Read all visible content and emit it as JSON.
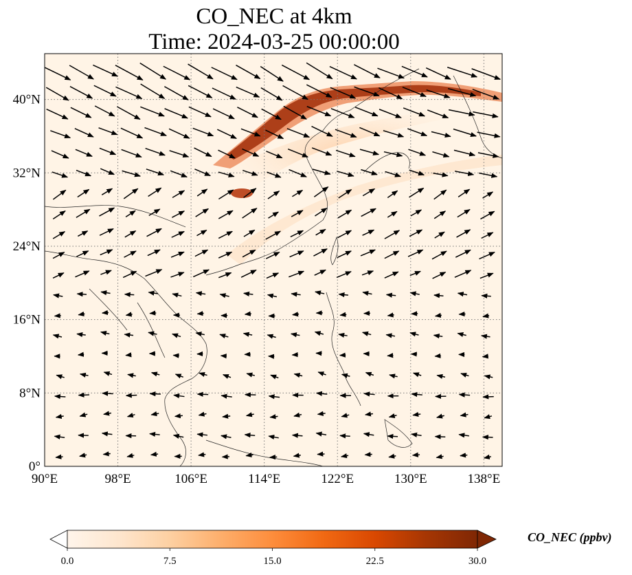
{
  "title": {
    "line1": "CO_NEC at 4km",
    "line2": "Time: 2024-03-25 00:00:00"
  },
  "map": {
    "projection": "PlateCarree",
    "lon_range": [
      90,
      140
    ],
    "lat_range": [
      0,
      45
    ],
    "gridlines": "dotted",
    "lon_ticks": [
      {
        "value": 90,
        "label": "90°E"
      },
      {
        "value": 98,
        "label": "98°E"
      },
      {
        "value": 106,
        "label": "106°E"
      },
      {
        "value": 114,
        "label": "114°E"
      },
      {
        "value": 122,
        "label": "122°E"
      },
      {
        "value": 130,
        "label": "130°E"
      },
      {
        "value": 138,
        "label": "138°E"
      }
    ],
    "lat_ticks": [
      {
        "value": 0,
        "label": "0°"
      },
      {
        "value": 8,
        "label": "8°N"
      },
      {
        "value": 16,
        "label": "16°N"
      },
      {
        "value": 24,
        "label": "24°N"
      },
      {
        "value": 32,
        "label": "32°N"
      },
      {
        "value": 40,
        "label": "40°N"
      }
    ],
    "field": "CO_NEC",
    "wind_vectors": "shown"
  },
  "colorbar": {
    "title": "CO_NEC (ppbv)",
    "min": 0,
    "max": 30,
    "extend": "both",
    "colormap": [
      "#fff5eb",
      "#fee6ce",
      "#fdd0a2",
      "#fdae6b",
      "#fd8d3c",
      "#f16913",
      "#d94801",
      "#a63603",
      "#7f2704"
    ],
    "ticks": [
      {
        "value": 0,
        "label": "0.0"
      },
      {
        "value": 7.5,
        "label": "7.5"
      },
      {
        "value": 15,
        "label": "15.0"
      },
      {
        "value": 22.5,
        "label": "22.5"
      },
      {
        "value": 30,
        "label": "30.0"
      }
    ]
  }
}
